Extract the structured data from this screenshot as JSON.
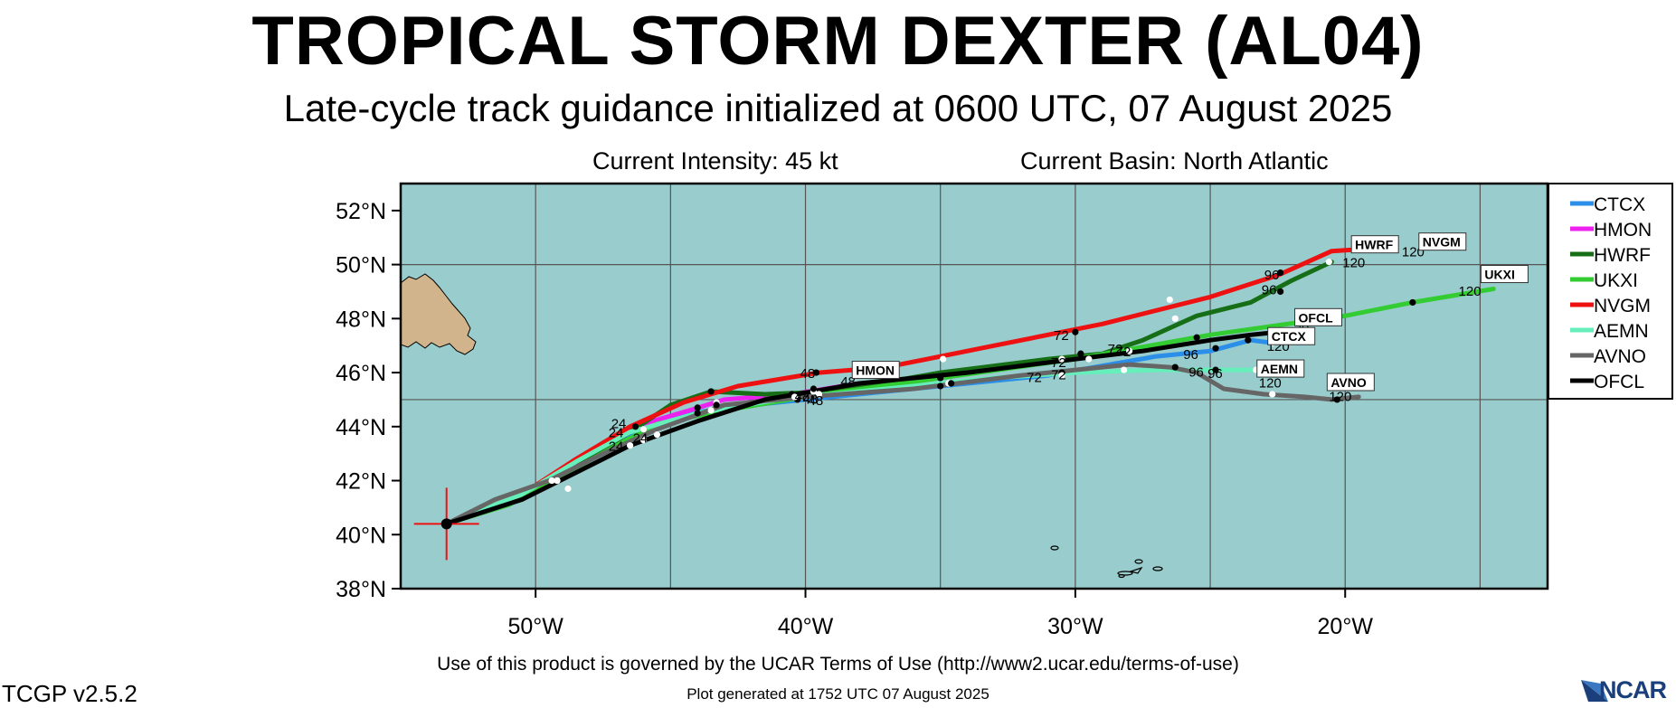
{
  "header": {
    "title": "TROPICAL STORM DEXTER (AL04)",
    "subtitle": "Late-cycle track guidance initialized at 0600 UTC, 07 August 2025",
    "intensity": "Current Intensity: 45 kt",
    "basin": "Current Basin: North Atlantic"
  },
  "footer": {
    "terms": "Use of this product is governed by the UCAR Terms of Use (http://www2.ucar.edu/terms-of-use)",
    "generated": "Plot generated at 1752 UTC   07 August 2025",
    "version": "TCGP v2.5.2",
    "logo_text": "NCAR"
  },
  "map": {
    "ocean_color": "#99cccc",
    "land_color": "#d2b48c",
    "grid_color": "#555555",
    "lon_range": [
      -55,
      -12.5
    ],
    "lat_range": [
      38,
      53
    ],
    "lat_ticks": [
      {
        "value": 52,
        "label": "52°N"
      },
      {
        "value": 50,
        "label": "50°N"
      },
      {
        "value": 48,
        "label": "48°N"
      },
      {
        "value": 46,
        "label": "46°N"
      },
      {
        "value": 44,
        "label": "44°N"
      },
      {
        "value": 42,
        "label": "42°N"
      },
      {
        "value": 40,
        "label": "40°N"
      },
      {
        "value": 38,
        "label": "38°N"
      }
    ],
    "lon_ticks": [
      {
        "value": -50,
        "label": "50°W"
      },
      {
        "value": -40,
        "label": "40°W"
      },
      {
        "value": -30,
        "label": "30°W"
      },
      {
        "value": -20,
        "label": "20°W"
      }
    ],
    "grid_lat": [
      45,
      50
    ],
    "grid_lon": [
      -50,
      -45,
      -40,
      -35,
      -30,
      -25,
      -20,
      -15
    ],
    "current_position": {
      "lon": -53.3,
      "lat": 40.4
    },
    "legend": [
      {
        "name": "CTCX",
        "color": "#2b8ee8"
      },
      {
        "name": "HMON",
        "color": "#ee22ee"
      },
      {
        "name": "HWRF",
        "color": "#166e16"
      },
      {
        "name": "UKXI",
        "color": "#33cc33"
      },
      {
        "name": "NVGM",
        "color": "#ee1111"
      },
      {
        "name": "AEMN",
        "color": "#66eebb"
      },
      {
        "name": "AVNO",
        "color": "#666666"
      },
      {
        "name": "OFCL",
        "color": "#000000"
      }
    ],
    "tracks": [
      {
        "name": "CTCX",
        "color": "#2b8ee8",
        "points": [
          [
            -53.3,
            40.4
          ],
          [
            -51,
            41.3
          ],
          [
            -49.5,
            42
          ],
          [
            -47.5,
            43.3
          ],
          [
            -45,
            44.4
          ],
          [
            -42,
            44.8
          ],
          [
            -39,
            45.1
          ],
          [
            -35,
            45.5
          ],
          [
            -31,
            45.9
          ],
          [
            -27,
            46.6
          ],
          [
            -25,
            46.8
          ],
          [
            -23.5,
            47.2
          ],
          [
            -22.7,
            47.1
          ]
        ],
        "dots": [
          [
            -49.2,
            42
          ],
          [
            -46,
            43.9
          ],
          [
            -43.5,
            44.6
          ],
          [
            -40.3,
            45
          ],
          [
            -34.7,
            45.6
          ],
          [
            -30.5,
            46
          ],
          [
            -28,
            46.8
          ],
          [
            -23.6,
            47.2
          ],
          [
            -22.7,
            47.1
          ]
        ],
        "labels": [
          {
            "text": "24",
            "lon": -47.3,
            "lat": 43.6
          },
          {
            "text": "48",
            "lon": -40.1,
            "lat": 44.85
          },
          {
            "text": "72",
            "lon": -30.9,
            "lat": 46.2
          },
          {
            "text": "96",
            "lon": -26,
            "lat": 46.5
          },
          {
            "text": "120",
            "lon": -22.9,
            "lat": 46.8
          }
        ],
        "tag": {
          "text": "CTCX",
          "lon": -22.8,
          "lat": 47.2
        }
      },
      {
        "name": "HMON",
        "color": "#ee22ee",
        "points": [
          [
            -53.3,
            40.4
          ],
          [
            -51,
            41.2
          ],
          [
            -49.5,
            42.1
          ],
          [
            -47.5,
            43.3
          ],
          [
            -46,
            44.1
          ],
          [
            -44.3,
            44.6
          ],
          [
            -43,
            45
          ],
          [
            -40.5,
            45.2
          ],
          [
            -38,
            45.6
          ]
        ],
        "dots": [
          [
            -49.4,
            42
          ],
          [
            -46.3,
            44
          ],
          [
            -43.3,
            44.9
          ],
          [
            -40.5,
            45.2
          ]
        ],
        "labels": [
          {
            "text": "24",
            "lon": -47.2,
            "lat": 43.95
          },
          {
            "text": "48",
            "lon": -40.4,
            "lat": 44.95
          }
        ],
        "tag": {
          "text": "HMON",
          "lon": -38.2,
          "lat": 45.95
        }
      },
      {
        "name": "HWRF",
        "color": "#166e16",
        "points": [
          [
            -53.3,
            40.4
          ],
          [
            -50.5,
            41.3
          ],
          [
            -48.5,
            42.5
          ],
          [
            -46.5,
            43.8
          ],
          [
            -45,
            44.8
          ],
          [
            -43.5,
            45.3
          ],
          [
            -41.5,
            45.2
          ],
          [
            -39,
            45.3
          ],
          [
            -35,
            46
          ],
          [
            -31,
            46.5
          ],
          [
            -29,
            46.7
          ],
          [
            -27.5,
            47.2
          ],
          [
            -25.5,
            48.1
          ],
          [
            -23.5,
            48.6
          ],
          [
            -22,
            49.4
          ],
          [
            -20.5,
            50.1
          ]
        ],
        "dots": [
          [
            -45.5,
            43.7
          ],
          [
            -43.5,
            45.3
          ],
          [
            -39.7,
            45.3
          ],
          [
            -29.8,
            46.7
          ],
          [
            -26.3,
            48
          ],
          [
            -22.4,
            49
          ],
          [
            -20.6,
            50.1
          ]
        ],
        "labels": [
          {
            "text": "24",
            "lon": -46.4,
            "lat": 43.4
          },
          {
            "text": "72",
            "lon": -28.8,
            "lat": 46.7
          },
          {
            "text": "96",
            "lon": -23.1,
            "lat": 48.9
          },
          {
            "text": "120",
            "lon": -20.1,
            "lat": 49.9
          }
        ],
        "tag": {
          "text": "HWRF",
          "lon": -19.7,
          "lat": 50.6
        }
      },
      {
        "name": "UKXI",
        "color": "#33cc33",
        "points": [
          [
            -53.3,
            40.4
          ],
          [
            -51,
            41.1
          ],
          [
            -49,
            42.2
          ],
          [
            -47,
            43.3
          ],
          [
            -45.5,
            44.1
          ],
          [
            -43,
            44.6
          ],
          [
            -40,
            45.1
          ],
          [
            -35,
            45.8
          ],
          [
            -30,
            46.5
          ],
          [
            -25,
            47.4
          ],
          [
            -20,
            48.1
          ],
          [
            -17.5,
            48.6
          ],
          [
            -14.5,
            49.1
          ]
        ],
        "dots": [
          [
            -48.8,
            41.7
          ],
          [
            -44,
            44.7
          ],
          [
            -39.5,
            45.2
          ],
          [
            -35,
            45.8
          ],
          [
            -30.5,
            46.5
          ],
          [
            -25.5,
            47.3
          ],
          [
            -21.5,
            47.9
          ],
          [
            -17.5,
            48.6
          ]
        ],
        "labels": [
          {
            "text": "120",
            "lon": -15.8,
            "lat": 48.85
          }
        ],
        "tag": {
          "text": "UKXI",
          "lon": -14.9,
          "lat": 49.5
        }
      },
      {
        "name": "NVGM",
        "color": "#ee1111",
        "points": [
          [
            -53.3,
            40.4
          ],
          [
            -50.5,
            41.5
          ],
          [
            -48.5,
            42.8
          ],
          [
            -46.5,
            44
          ],
          [
            -44.5,
            44.9
          ],
          [
            -42.5,
            45.5
          ],
          [
            -39.5,
            46
          ],
          [
            -37,
            46.2
          ],
          [
            -33,
            47
          ],
          [
            -29,
            47.8
          ],
          [
            -25,
            48.8
          ],
          [
            -22.5,
            49.6
          ],
          [
            -20.5,
            50.5
          ],
          [
            -19,
            50.6
          ]
        ],
        "dots": [
          [
            -46,
            43.9
          ],
          [
            -39.6,
            46
          ],
          [
            -34.9,
            46.5
          ],
          [
            -30,
            47.5
          ],
          [
            -26.5,
            48.7
          ],
          [
            -22.4,
            49.7
          ],
          [
            -19,
            50.6
          ]
        ],
        "labels": [
          {
            "text": "48",
            "lon": -40.2,
            "lat": 45.8
          },
          {
            "text": "72",
            "lon": -30.8,
            "lat": 47.2
          },
          {
            "text": "96",
            "lon": -23,
            "lat": 49.45
          },
          {
            "text": "120",
            "lon": -17.9,
            "lat": 50.3
          }
        ],
        "tag": {
          "text": "NVGM",
          "lon": -17.2,
          "lat": 50.7
        }
      },
      {
        "name": "AEMN",
        "color": "#66eebb",
        "points": [
          [
            -53.3,
            40.4
          ],
          [
            -50.5,
            41.5
          ],
          [
            -48.5,
            42.7
          ],
          [
            -46.5,
            43.8
          ],
          [
            -44,
            44.5
          ],
          [
            -41,
            45
          ],
          [
            -37,
            45.4
          ],
          [
            -33,
            45.8
          ],
          [
            -30,
            46
          ],
          [
            -27,
            46.1
          ],
          [
            -24.5,
            46.1
          ],
          [
            -23,
            46.1
          ]
        ],
        "dots": [
          [
            -49.2,
            42
          ],
          [
            -44,
            44.5
          ],
          [
            -40.4,
            45.1
          ],
          [
            -34.6,
            45.6
          ],
          [
            -28.2,
            46.1
          ],
          [
            -24.8,
            46.1
          ],
          [
            -23.3,
            46.1
          ]
        ],
        "labels": [
          {
            "text": "72",
            "lon": -31.8,
            "lat": 45.65
          },
          {
            "text": "96",
            "lon": -25.1,
            "lat": 45.8
          },
          {
            "text": "120",
            "lon": -23.2,
            "lat": 45.45
          }
        ],
        "tag": {
          "text": "AEMN",
          "lon": -23.2,
          "lat": 46.0
        }
      },
      {
        "name": "AVNO",
        "color": "#666666",
        "points": [
          [
            -53.3,
            40.4
          ],
          [
            -51.5,
            41.3
          ],
          [
            -49.5,
            42
          ],
          [
            -47.5,
            43
          ],
          [
            -45.5,
            43.9
          ],
          [
            -43,
            44.8
          ],
          [
            -40,
            45.1
          ],
          [
            -36,
            45.4
          ],
          [
            -32,
            45.9
          ],
          [
            -28,
            46.3
          ],
          [
            -26.5,
            46.2
          ],
          [
            -25.5,
            46
          ],
          [
            -24.5,
            45.4
          ],
          [
            -23,
            45.2
          ],
          [
            -21.5,
            45.1
          ],
          [
            -20.5,
            45
          ],
          [
            -19.5,
            45.1
          ]
        ],
        "dots": [
          [
            -46.5,
            43.3
          ],
          [
            -43.3,
            44.8
          ],
          [
            -39.5,
            45.2
          ],
          [
            -35,
            45.5
          ],
          [
            -30.5,
            45.9
          ],
          [
            -26.3,
            46.2
          ],
          [
            -22.7,
            45.2
          ],
          [
            -20.3,
            45
          ]
        ],
        "labels": [
          {
            "text": "24",
            "lon": -47.3,
            "lat": 43.1
          },
          {
            "text": "48",
            "lon": -39.9,
            "lat": 44.8
          },
          {
            "text": "72",
            "lon": -30.9,
            "lat": 45.75
          },
          {
            "text": "96",
            "lon": -25.8,
            "lat": 45.85
          },
          {
            "text": "120",
            "lon": -20.6,
            "lat": 44.95
          }
        ],
        "tag": {
          "text": "AVNO",
          "lon": -20.6,
          "lat": 45.5
        }
      },
      {
        "name": "OFCL",
        "color": "#000000",
        "points": [
          [
            -53.3,
            40.4
          ],
          [
            -50.5,
            41.3
          ],
          [
            -48.5,
            42.3
          ],
          [
            -46.5,
            43.3
          ],
          [
            -44,
            44.2
          ],
          [
            -41.5,
            45
          ],
          [
            -38,
            45.6
          ],
          [
            -34,
            46
          ],
          [
            -30,
            46.5
          ],
          [
            -27.5,
            46.8
          ],
          [
            -25,
            47.2
          ],
          [
            -23.5,
            47.4
          ],
          [
            -22.5,
            47.5
          ]
        ],
        "dots": [
          [
            -46,
            43.5
          ],
          [
            -39.7,
            45.4
          ],
          [
            -29.5,
            46.5
          ],
          [
            -24.8,
            46.9
          ],
          [
            -22.7,
            47.5
          ]
        ],
        "labels": [
          {
            "text": "48",
            "lon": -38.7,
            "lat": 45.5
          },
          {
            "text": "72",
            "lon": -28.5,
            "lat": 46.6
          },
          {
            "text": "96",
            "lon": -21.9,
            "lat": 47.6
          }
        ],
        "tag": {
          "text": "OFCL",
          "lon": -21.8,
          "lat": 47.9
        }
      }
    ]
  }
}
